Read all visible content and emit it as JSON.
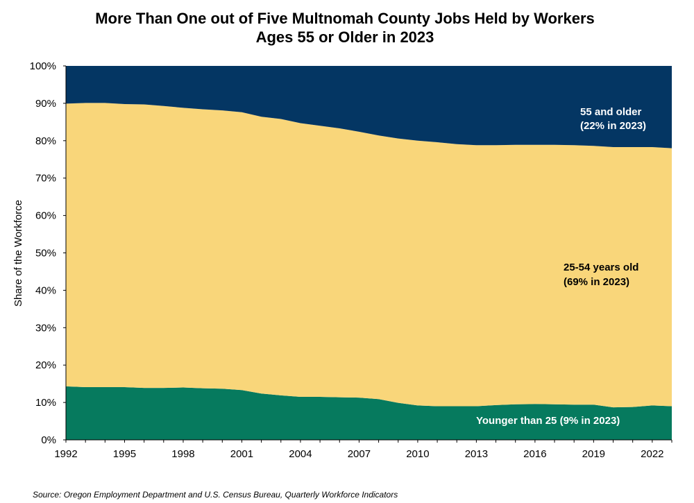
{
  "title": {
    "line1": "More Than One out of Five Multnomah County Jobs Held by Workers",
    "line2": "Ages 55 or Older in 2023"
  },
  "source": "Source: Oregon Employment Department and U.S. Census Bureau, Quarterly Workforce Indicators",
  "colors": {
    "younger": "#067A5E",
    "prime": "#F9D67A",
    "older": "#043663",
    "older_label": "#ffffff",
    "prime_label": "#000000",
    "younger_label": "#ffffff"
  },
  "chart_data": {
    "type": "area",
    "stacked": true,
    "title": "More Than One out of Five Multnomah County Jobs Held by Workers Ages 55 or Older in 2023",
    "xlabel": "",
    "ylabel": "Share of the Workforce",
    "xlim": [
      1992,
      2023
    ],
    "ylim": [
      0,
      100
    ],
    "grid": false,
    "legend": "none",
    "x_ticks": [
      "1992",
      "1995",
      "1998",
      "2001",
      "2004",
      "2007",
      "2010",
      "2013",
      "2016",
      "2019",
      "2022"
    ],
    "y_ticks": [
      "0%",
      "10%",
      "20%",
      "30%",
      "40%",
      "50%",
      "60%",
      "70%",
      "80%",
      "90%",
      "100%"
    ],
    "x": [
      1992,
      1993,
      1994,
      1995,
      1996,
      1997,
      1998,
      1999,
      2000,
      2001,
      2002,
      2003,
      2004,
      2005,
      2006,
      2007,
      2008,
      2009,
      2010,
      2011,
      2012,
      2013,
      2014,
      2015,
      2016,
      2017,
      2018,
      2019,
      2020,
      2021,
      2022,
      2023
    ],
    "series": [
      {
        "key": "younger",
        "values": [
          14.3,
          14.1,
          14.1,
          14.1,
          13.9,
          13.9,
          14.0,
          13.8,
          13.7,
          13.3,
          12.4,
          11.9,
          11.5,
          11.5,
          11.4,
          11.3,
          10.9,
          9.9,
          9.2,
          9.0,
          9.0,
          9.0,
          9.3,
          9.5,
          9.6,
          9.5,
          9.4,
          9.4,
          8.7,
          8.8,
          9.2,
          9.0
        ]
      },
      {
        "key": "prime",
        "values": [
          75.6,
          76.0,
          76.0,
          75.7,
          75.8,
          75.4,
          74.8,
          74.6,
          74.4,
          74.3,
          74.0,
          73.9,
          73.2,
          72.5,
          71.9,
          71.1,
          70.5,
          70.7,
          70.8,
          70.6,
          70.1,
          69.8,
          69.5,
          69.4,
          69.3,
          69.4,
          69.4,
          69.2,
          69.6,
          69.5,
          69.1,
          69.0
        ]
      },
      {
        "key": "older",
        "values": [
          10.1,
          9.9,
          9.9,
          10.2,
          10.3,
          10.7,
          11.2,
          11.6,
          11.9,
          12.4,
          13.6,
          14.2,
          15.3,
          16.0,
          16.7,
          17.6,
          18.6,
          19.4,
          20.0,
          20.4,
          20.9,
          21.2,
          21.2,
          21.1,
          21.1,
          21.1,
          21.2,
          21.4,
          21.7,
          21.7,
          21.7,
          22.0
        ]
      }
    ],
    "annotations": {
      "older_line1": "55 and older",
      "older_line2": "(22% in 2023)",
      "prime_line1": "25-54 years old",
      "prime_line2": "(69% in 2023)",
      "younger": "Younger than 25 (9% in 2023)"
    }
  }
}
